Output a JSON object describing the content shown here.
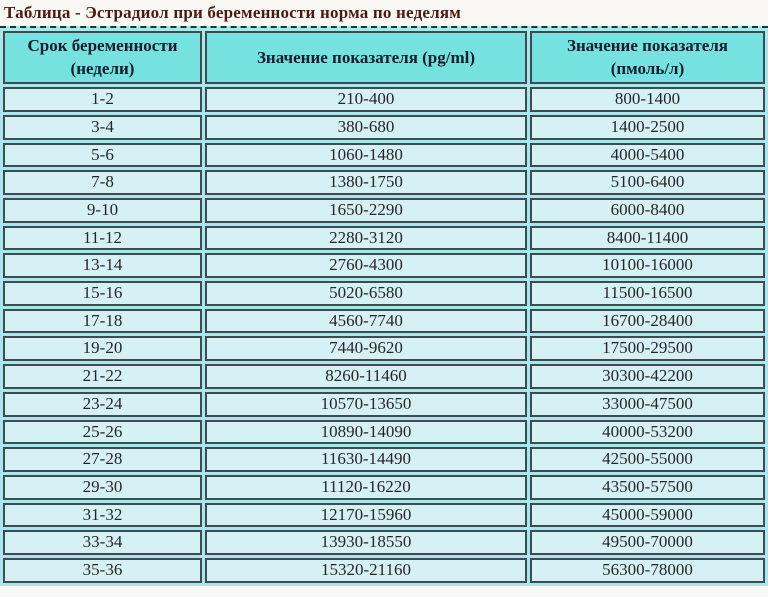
{
  "page": {
    "title": "Таблица - Эстрадиол при беременности норма по неделям"
  },
  "table": {
    "columns": [
      "Срок беременности (недели)",
      "Значение показателя (pg/ml)",
      "Значение показателя (пмоль/л)"
    ],
    "rows": [
      [
        "1-2",
        "210-400",
        "800-1400"
      ],
      [
        "3-4",
        "380-680",
        "1400-2500"
      ],
      [
        "5-6",
        "1060-1480",
        "4000-5400"
      ],
      [
        "7-8",
        "1380-1750",
        "5100-6400"
      ],
      [
        "9-10",
        "1650-2290",
        "6000-8400"
      ],
      [
        "11-12",
        "2280-3120",
        "8400-11400"
      ],
      [
        "13-14",
        "2760-4300",
        "10100-16000"
      ],
      [
        "15-16",
        "5020-6580",
        "11500-16500"
      ],
      [
        "17-18",
        "4560-7740",
        "16700-28400"
      ],
      [
        "19-20",
        "7440-9620",
        "17500-29500"
      ],
      [
        "21-22",
        "8260-11460",
        "30300-42200"
      ],
      [
        "23-24",
        "10570-13650",
        "33000-47500"
      ],
      [
        "25-26",
        "10890-14090",
        "40000-53200"
      ],
      [
        "27-28",
        "11630-14490",
        "42500-55000"
      ],
      [
        "29-30",
        "11120-16220",
        "43500-57500"
      ],
      [
        "31-32",
        "12170-15960",
        "45000-59000"
      ],
      [
        "33-34",
        "13930-18550",
        "49500-70000"
      ],
      [
        "35-36",
        "15320-21160",
        "56300-78000"
      ]
    ]
  },
  "colors": {
    "page_bg": "#FAF8F4",
    "title_text": "#4A1B10",
    "table_bg": "#A9E7ED",
    "border": "#3C4C4F",
    "header_bg": "#76E2E0",
    "header_text": "#0E1C2C",
    "cell_bg": "#D6F1F5",
    "cell_text": "#262626"
  }
}
